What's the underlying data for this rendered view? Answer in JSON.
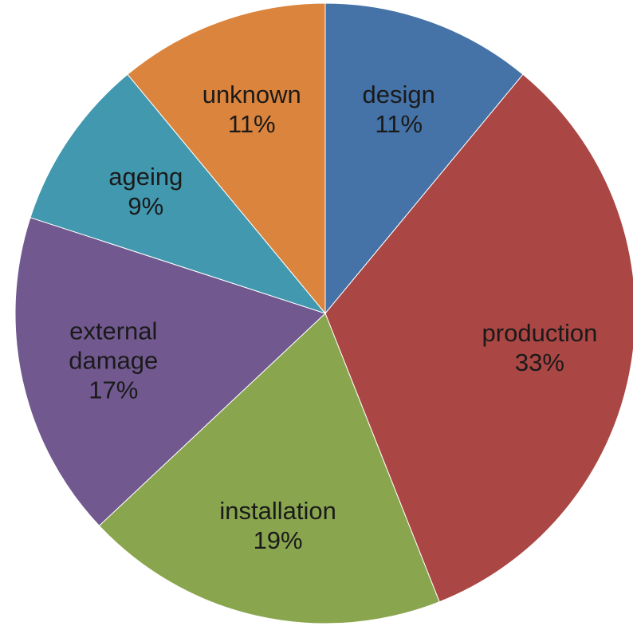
{
  "chart_data": {
    "type": "pie",
    "categories": [
      "design",
      "production",
      "installation",
      "external damage",
      "ageing",
      "unknown"
    ],
    "values": [
      11,
      33,
      19,
      17,
      9,
      11
    ],
    "value_labels": [
      "11%",
      "33%",
      "19%",
      "17%",
      "9%",
      "11%"
    ],
    "colors": [
      "#4572a7",
      "#aa4643",
      "#89a54e",
      "#71588f",
      "#4198af",
      "#db843d"
    ]
  }
}
